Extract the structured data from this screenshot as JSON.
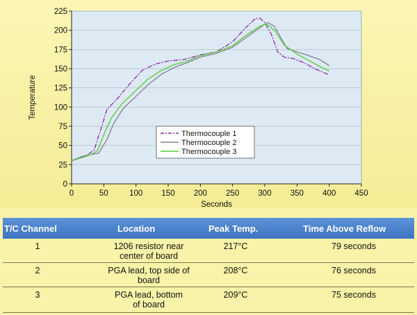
{
  "chart_data": {
    "type": "line",
    "xlabel": "Seconds",
    "ylabel": "Temperature",
    "xlim": [
      0,
      450
    ],
    "ylim": [
      0,
      225
    ],
    "xticks": [
      0,
      50,
      100,
      150,
      200,
      250,
      300,
      350,
      400,
      450
    ],
    "yticks": [
      0,
      25,
      50,
      75,
      100,
      125,
      150,
      175,
      200,
      225
    ],
    "grid": "horizontal",
    "plot_background": "#dde9f3",
    "legend_position": "center-left",
    "series": [
      {
        "name": "Thermocouple 1",
        "color": "#8a2aa8",
        "style": "dash-dot",
        "x": [
          0,
          10,
          25,
          35,
          45,
          55,
          70,
          90,
          110,
          130,
          150,
          175,
          200,
          225,
          250,
          270,
          285,
          292,
          300,
          310,
          320,
          330,
          345,
          360,
          380,
          400
        ],
        "y": [
          30,
          34,
          38,
          44,
          70,
          97,
          110,
          130,
          148,
          156,
          160,
          162,
          168,
          172,
          185,
          203,
          215,
          216,
          210,
          195,
          172,
          165,
          163,
          158,
          149,
          142
        ]
      },
      {
        "name": "Thermocouple 2",
        "color": "#7f7f8f",
        "style": "solid",
        "x": [
          0,
          15,
          30,
          42,
          55,
          65,
          80,
          100,
          120,
          140,
          160,
          180,
          200,
          225,
          250,
          270,
          290,
          300,
          305,
          315,
          325,
          335,
          350,
          365,
          385,
          400
        ],
        "y": [
          30,
          34,
          38,
          40,
          58,
          78,
          98,
          114,
          130,
          143,
          152,
          158,
          165,
          170,
          178,
          190,
          202,
          208,
          210,
          205,
          190,
          176,
          172,
          168,
          162,
          154
        ]
      },
      {
        "name": "Thermocouple 3",
        "color": "#55cc33",
        "style": "solid",
        "x": [
          0,
          15,
          30,
          40,
          52,
          62,
          78,
          98,
          118,
          138,
          158,
          180,
          200,
          225,
          250,
          270,
          290,
          300,
          305,
          315,
          330,
          350,
          370,
          385,
          400
        ],
        "y": [
          30,
          35,
          38,
          43,
          68,
          86,
          104,
          120,
          136,
          147,
          155,
          160,
          167,
          172,
          180,
          193,
          204,
          208,
          207,
          200,
          181,
          169,
          160,
          153,
          147
        ]
      }
    ]
  },
  "table": {
    "headers": [
      "T/C Channel",
      "Location",
      "Peak Temp.",
      "Time Above Reflow"
    ],
    "rows": [
      {
        "channel": "1",
        "location_line1": "1206 resistor near",
        "location_line2": "center of board",
        "peak": "217°C",
        "time": "79 seconds"
      },
      {
        "channel": "2",
        "location_line1": "PGA lead, top side of",
        "location_line2": "board",
        "peak": "208°C",
        "time": "76 seconds"
      },
      {
        "channel": "3",
        "location_line1": "PGA lead, bottom",
        "location_line2": "of board",
        "peak": "209°C",
        "time": "75 seconds"
      }
    ]
  }
}
